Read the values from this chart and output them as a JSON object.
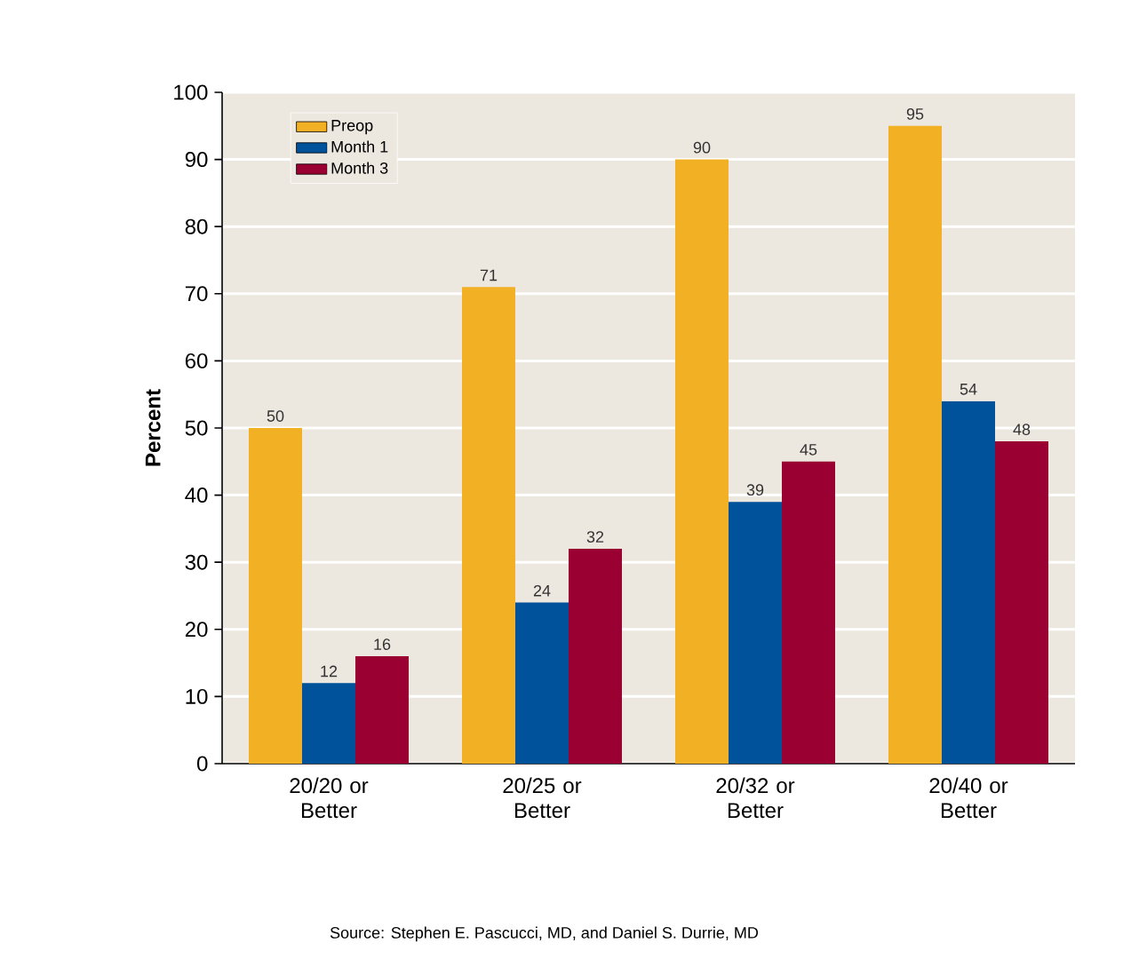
{
  "chart_data": {
    "type": "bar",
    "ylabel": "Percent",
    "categories": [
      "20/20 or Better",
      "20/25 or Better",
      "20/32 or Better",
      "20/40 or Better"
    ],
    "series": [
      {
        "name": "Preop",
        "color": "#f2b124",
        "values": [
          50,
          71,
          90,
          95
        ]
      },
      {
        "name": "Month 1",
        "color": "#00529b",
        "values": [
          12,
          24,
          39,
          54
        ]
      },
      {
        "name": "Month 3",
        "color": "#9b0033",
        "values": [
          16,
          32,
          45,
          48
        ]
      }
    ],
    "ylim": [
      0,
      100
    ],
    "yticks": [
      0,
      10,
      20,
      30,
      40,
      50,
      60,
      70,
      80,
      90,
      100
    ],
    "grid": "y",
    "legend": "top left",
    "data_labels": true,
    "annotations": [
      "Source: Stephen E. Pascucci, MD, and Daniel S. Durrie, MD"
    ]
  }
}
